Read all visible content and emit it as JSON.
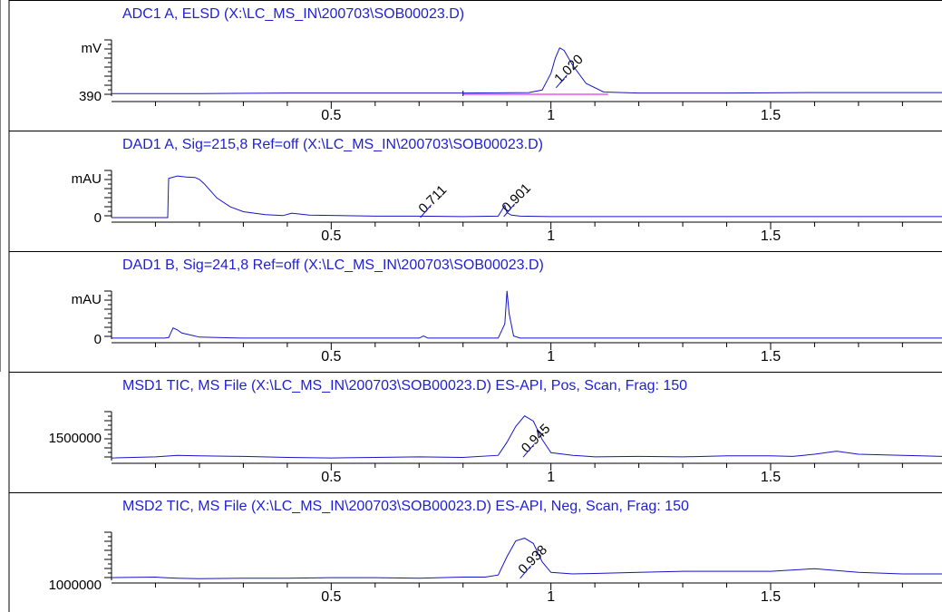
{
  "chart_data": [
    {
      "type": "line",
      "title": "ADC1 A, ELSD (X:\\LC_MS_IN\\200703\\SOB00023.D)",
      "ylabel": "mV",
      "ytick_labels": [
        "390"
      ],
      "xlim": [
        0.0,
        1.89
      ],
      "xticks": [
        0.5,
        1,
        1.5
      ],
      "series": [
        {
          "x": [
            0.0,
            0.1,
            0.2,
            0.4,
            0.6,
            0.8,
            0.95,
            0.98,
            1.0,
            1.01,
            1.02,
            1.03,
            1.05,
            1.08,
            1.12,
            1.2,
            1.4,
            1.6,
            1.89
          ],
          "y": [
            0.05,
            0.05,
            0.05,
            0.06,
            0.06,
            0.06,
            0.07,
            0.12,
            0.45,
            0.75,
            0.95,
            0.9,
            0.6,
            0.25,
            0.08,
            0.06,
            0.06,
            0.07,
            0.07
          ]
        }
      ],
      "baseline_range": [
        0.8,
        1.13
      ],
      "peak_labels": [
        {
          "text": "1.020",
          "x": 1.02
        }
      ]
    },
    {
      "type": "line",
      "title": "DAD1 A, Sig=215,8 Ref=off (X:\\LC_MS_IN\\200703\\SOB00023.D)",
      "ylabel": "mAU",
      "ytick_labels": [
        "0"
      ],
      "xlim": [
        0.0,
        1.89
      ],
      "xticks": [
        0.5,
        1,
        1.5
      ],
      "series": [
        {
          "x": [
            0.0,
            0.12,
            0.128,
            0.13,
            0.15,
            0.17,
            0.19,
            0.2,
            0.21,
            0.22,
            0.24,
            0.27,
            0.3,
            0.35,
            0.39,
            0.41,
            0.45,
            0.6,
            0.7,
            0.8,
            0.88,
            0.895,
            0.9,
            0.91,
            0.93,
            1.0,
            1.89
          ],
          "y": [
            0.0,
            0.0,
            0.0,
            0.8,
            0.85,
            0.83,
            0.82,
            0.78,
            0.7,
            0.6,
            0.4,
            0.22,
            0.12,
            0.06,
            0.04,
            0.09,
            0.05,
            0.03,
            0.03,
            0.02,
            0.03,
            0.25,
            0.1,
            0.05,
            0.03,
            0.02,
            0.02
          ]
        }
      ],
      "peak_labels": [
        {
          "text": "0.711",
          "x": 0.711
        },
        {
          "text": "0.901",
          "x": 0.901
        }
      ]
    },
    {
      "type": "line",
      "title": "DAD1 B, Sig=241,8 Ref=off (X:\\LC_MS_IN\\200703\\SOB00023.D)",
      "ylabel": "mAU",
      "ytick_labels": [
        "0"
      ],
      "xlim": [
        0.0,
        1.89
      ],
      "xticks": [
        0.5,
        1,
        1.5
      ],
      "series": [
        {
          "x": [
            0.0,
            0.12,
            0.13,
            0.14,
            0.15,
            0.16,
            0.18,
            0.2,
            0.3,
            0.5,
            0.7,
            0.71,
            0.72,
            0.88,
            0.895,
            0.9,
            0.905,
            0.915,
            0.93,
            1.0,
            1.89
          ],
          "y": [
            0.02,
            0.02,
            0.03,
            0.22,
            0.18,
            0.12,
            0.08,
            0.04,
            0.02,
            0.02,
            0.02,
            0.06,
            0.02,
            0.02,
            0.3,
            0.95,
            0.5,
            0.06,
            0.02,
            0.02,
            0.02
          ]
        }
      ],
      "peak_labels": []
    },
    {
      "type": "line",
      "title": "MSD1 TIC, MS File (X:\\LC_MS_IN\\200703\\SOB00023.D)    ES-API, Pos, Scan, Frag: 150",
      "ytick_labels": [
        "1500000"
      ],
      "xlim": [
        0.0,
        1.89
      ],
      "xticks": [
        0.5,
        1,
        1.5
      ],
      "series": [
        {
          "x": [
            0.0,
            0.1,
            0.15,
            0.2,
            0.3,
            0.4,
            0.5,
            0.6,
            0.7,
            0.8,
            0.88,
            0.9,
            0.92,
            0.94,
            0.96,
            0.98,
            1.0,
            1.05,
            1.1,
            1.2,
            1.3,
            1.4,
            1.5,
            1.55,
            1.6,
            1.65,
            1.7,
            1.8,
            1.89
          ],
          "y": [
            0.05,
            0.07,
            0.1,
            0.09,
            0.08,
            0.06,
            0.05,
            0.06,
            0.07,
            0.06,
            0.1,
            0.35,
            0.65,
            0.85,
            0.75,
            0.4,
            0.15,
            0.1,
            0.07,
            0.08,
            0.07,
            0.09,
            0.09,
            0.08,
            0.12,
            0.18,
            0.12,
            0.1,
            0.08
          ]
        }
      ],
      "peak_labels": [
        {
          "text": "0.945",
          "x": 0.945
        }
      ]
    },
    {
      "type": "line",
      "title": "MSD2 TIC, MS File (X:\\LC_MS_IN\\200703\\SOB00023.D)    ES-API, Neg, Scan, Frag: 150",
      "ytick_labels": [
        "1000000"
      ],
      "xlim": [
        0.0,
        1.89
      ],
      "xticks": [
        0.5,
        1,
        1.5
      ],
      "series": [
        {
          "x": [
            0.0,
            0.1,
            0.12,
            0.15,
            0.2,
            0.3,
            0.4,
            0.5,
            0.6,
            0.7,
            0.8,
            0.85,
            0.88,
            0.9,
            0.92,
            0.94,
            0.96,
            0.98,
            1.0,
            1.05,
            1.1,
            1.2,
            1.3,
            1.4,
            1.5,
            1.6,
            1.7,
            1.8,
            1.89
          ],
          "y": [
            0.05,
            0.06,
            0.05,
            0.04,
            0.03,
            0.04,
            0.04,
            0.05,
            0.05,
            0.04,
            0.06,
            0.06,
            0.1,
            0.45,
            0.75,
            0.8,
            0.7,
            0.35,
            0.15,
            0.12,
            0.13,
            0.15,
            0.17,
            0.17,
            0.17,
            0.22,
            0.15,
            0.12,
            0.12
          ]
        }
      ],
      "peak_labels": [
        {
          "text": "0.938",
          "x": 0.938
        }
      ]
    }
  ]
}
